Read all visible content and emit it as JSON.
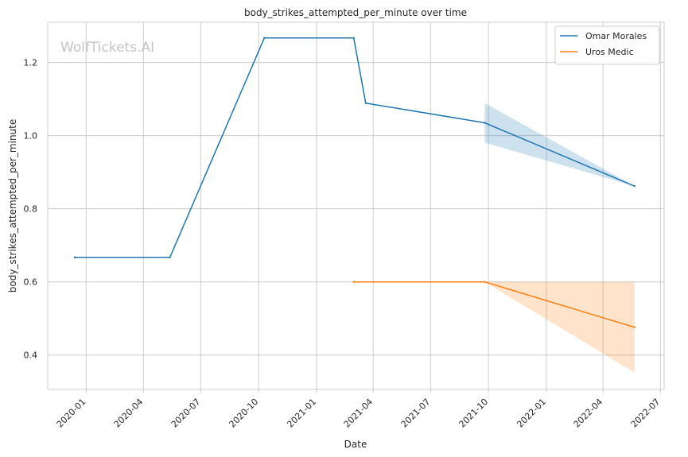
{
  "chart_data": {
    "type": "line",
    "title": "body_strikes_attempted_per_minute over time",
    "xlabel": "Date",
    "ylabel": "body_strikes_attempted_per_minute",
    "watermark": "WolfTickets.AI",
    "grid": true,
    "legend_position": "top-right",
    "xlim": [
      "2019-11-01",
      "2022-07-07"
    ],
    "ylim": [
      0.306,
      1.31
    ],
    "x_ticks": [
      "2020-01",
      "2020-04",
      "2020-07",
      "2020-10",
      "2021-01",
      "2021-04",
      "2021-07",
      "2021-10",
      "2022-01",
      "2022-04",
      "2022-07"
    ],
    "y_ticks": [
      0.4,
      0.6,
      0.8,
      1.0,
      1.2
    ],
    "y_tick_labels": [
      "0.4",
      "0.6",
      "0.8",
      "1.0",
      "1.2"
    ],
    "series": [
      {
        "name": "Omar Morales",
        "color": "#1f77b4",
        "points": [
          {
            "x": "2019-12-14",
            "y": 0.667
          },
          {
            "x": "2020-05-13",
            "y": 0.667
          },
          {
            "x": "2020-10-10",
            "y": 1.267
          },
          {
            "x": "2021-03-01",
            "y": 1.267
          },
          {
            "x": "2021-03-20",
            "y": 1.089
          },
          {
            "x": "2021-09-25",
            "y": 1.035
          },
          {
            "x": "2022-05-21",
            "y": 0.862
          }
        ],
        "band": [
          {
            "x": "2021-09-25",
            "low": 0.981,
            "high": 1.089
          },
          {
            "x": "2022-05-21",
            "low": 0.862,
            "high": 0.862
          }
        ]
      },
      {
        "name": "Uros Medic",
        "color": "#ff7f0e",
        "points": [
          {
            "x": "2021-03-01",
            "y": 0.6
          },
          {
            "x": "2021-09-25",
            "y": 0.6
          },
          {
            "x": "2022-05-21",
            "y": 0.476
          }
        ],
        "band": [
          {
            "x": "2021-09-25",
            "low": 0.6,
            "high": 0.6
          },
          {
            "x": "2022-05-21",
            "low": 0.352,
            "high": 0.6
          }
        ]
      }
    ]
  }
}
